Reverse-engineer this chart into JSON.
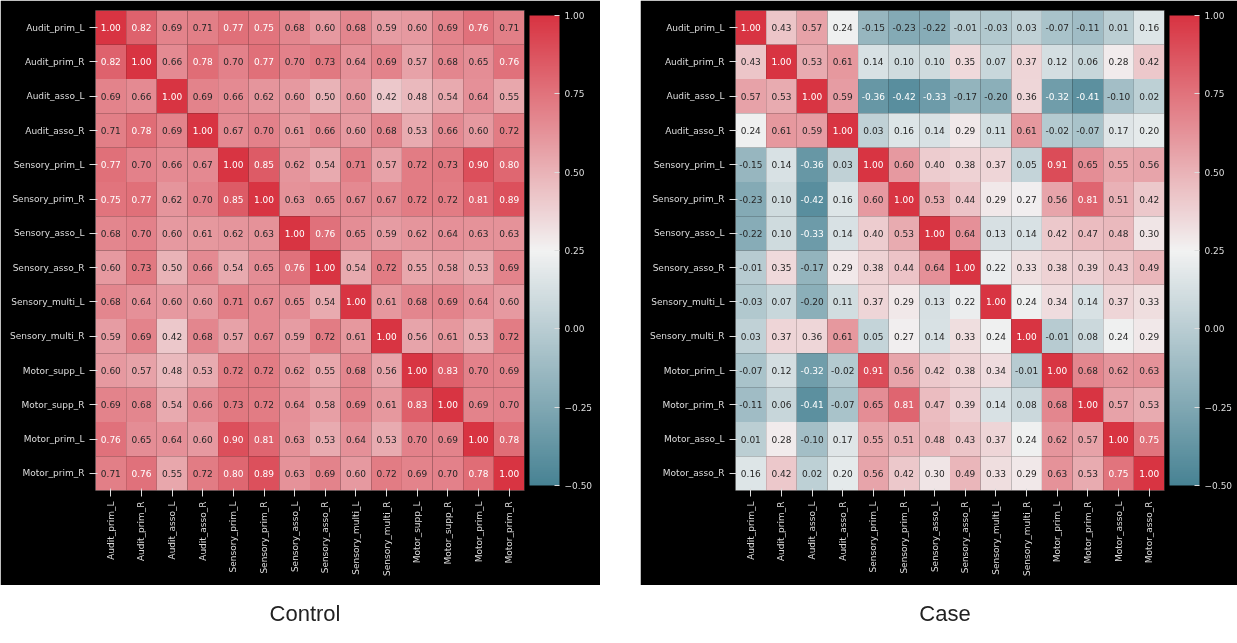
{
  "chart_data": [
    {
      "type": "heatmap",
      "title": "Control",
      "cell_labels": [
        [
          "1.00",
          "0.82",
          "0.69",
          "0.71",
          "0.77",
          "0.75",
          "0.68",
          "0.60",
          "0.68",
          "0.59",
          "0.60",
          "0.69",
          "0.76",
          "0.71"
        ],
        [
          "0.82",
          "1.00",
          "0.66",
          "0.78",
          "0.70",
          "0.77",
          "0.70",
          "0.73",
          "0.64",
          "0.69",
          "0.57",
          "0.68",
          "0.65",
          "0.76"
        ],
        [
          "0.69",
          "0.66",
          "1.00",
          "0.69",
          "0.66",
          "0.62",
          "0.60",
          "0.50",
          "0.60",
          "0.42",
          "0.48",
          "0.54",
          "0.64",
          "0.55"
        ],
        [
          "0.71",
          "0.78",
          "0.69",
          "1.00",
          "0.67",
          "0.70",
          "0.61",
          "0.66",
          "0.60",
          "0.68",
          "0.53",
          "0.66",
          "0.60",
          "0.72"
        ],
        [
          "0.77",
          "0.70",
          "0.66",
          "0.67",
          "1.00",
          "0.85",
          "0.62",
          "0.54",
          "0.71",
          "0.57",
          "0.72",
          "0.73",
          "0.90",
          "0.80"
        ],
        [
          "0.75",
          "0.77",
          "0.62",
          "0.70",
          "0.85",
          "1.00",
          "0.63",
          "0.65",
          "0.67",
          "0.67",
          "0.72",
          "0.72",
          "0.81",
          "0.89"
        ],
        [
          "0.68",
          "0.70",
          "0.60",
          "0.61",
          "0.62",
          "0.63",
          "1.00",
          "0.76",
          "0.65",
          "0.59",
          "0.62",
          "0.64",
          "0.63",
          "0.63"
        ],
        [
          "0.60",
          "0.73",
          "0.50",
          "0.66",
          "0.54",
          "0.65",
          "0.76",
          "1.00",
          "0.54",
          "0.72",
          "0.55",
          "0.58",
          "0.53",
          "0.69"
        ],
        [
          "0.68",
          "0.64",
          "0.60",
          "0.60",
          "0.71",
          "0.67",
          "0.65",
          "0.54",
          "1.00",
          "0.61",
          "0.68",
          "0.69",
          "0.64",
          "0.60"
        ],
        [
          "0.59",
          "0.69",
          "0.42",
          "0.68",
          "0.57",
          "0.67",
          "0.59",
          "0.72",
          "0.61",
          "1.00",
          "0.56",
          "0.61",
          "0.53",
          "0.72"
        ],
        [
          "0.60",
          "0.57",
          "0.48",
          "0.53",
          "0.72",
          "0.72",
          "0.62",
          "0.55",
          "0.68",
          "0.56",
          "1.00",
          "0.83",
          "0.70",
          "0.69"
        ],
        [
          "0.69",
          "0.68",
          "0.54",
          "0.66",
          "0.73",
          "0.72",
          "0.64",
          "0.58",
          "0.69",
          "0.61",
          "0.83",
          "1.00",
          "0.69",
          "0.70"
        ],
        [
          "0.76",
          "0.65",
          "0.64",
          "0.60",
          "0.90",
          "0.81",
          "0.63",
          "0.53",
          "0.64",
          "0.53",
          "0.70",
          "0.69",
          "1.00",
          "0.78"
        ],
        [
          "0.71",
          "0.76",
          "0.55",
          "0.72",
          "0.80",
          "0.89",
          "0.63",
          "0.69",
          "0.60",
          "0.72",
          "0.69",
          "0.70",
          "0.78",
          "1.00"
        ]
      ],
      "categories": [
        "Audit_prim_L",
        "Audit_prim_R",
        "Audit_asso_L",
        "Audit_asso_R",
        "Sensory_prim_L",
        "Sensory_prim_R",
        "Sensory_asso_L",
        "Sensory_asso_R",
        "Sensory_multi_L",
        "Sensory_multi_R",
        "Motor_supp_L",
        "Motor_supp_R",
        "Motor_prim_L",
        "Motor_prim_R"
      ],
      "y_categories": [
        "Audit_prim_L",
        "Audit_prim_R",
        "Audit_asso_L",
        "Audit_asso_R",
        "Sensory_prim_L",
        "Sensory_prim_R",
        "Sensory_asso_L",
        "Sensory_asso_R",
        "Sensory_multi_L",
        "Sensory_multi_R",
        "Motor_supp_L",
        "Motor_supp_R",
        "Motor_prim_L",
        "Motor_prim_R"
      ],
      "cells": [
        [
          1.0,
          0.82,
          0.69,
          0.71,
          0.77,
          0.75,
          0.68,
          0.6,
          0.68,
          0.59,
          0.6,
          0.69,
          0.76,
          0.71
        ],
        [
          0.82,
          1.0,
          0.66,
          0.78,
          0.7,
          0.77,
          0.7,
          0.73,
          0.64,
          0.69,
          0.57,
          0.68,
          0.65,
          0.76
        ],
        [
          0.69,
          0.66,
          1.0,
          0.69,
          0.66,
          0.62,
          0.6,
          0.5,
          0.6,
          0.42,
          0.48,
          0.54,
          0.64,
          0.55
        ],
        [
          0.71,
          0.78,
          0.69,
          1.0,
          0.67,
          0.7,
          0.61,
          0.66,
          0.6,
          0.68,
          0.53,
          0.66,
          0.6,
          0.72
        ],
        [
          0.77,
          0.7,
          0.66,
          0.67,
          1.0,
          0.85,
          0.62,
          0.54,
          0.71,
          0.57,
          0.72,
          0.73,
          0.9,
          0.8
        ],
        [
          0.75,
          0.77,
          0.62,
          0.7,
          0.85,
          1.0,
          0.63,
          0.65,
          0.67,
          0.67,
          0.72,
          0.72,
          0.81,
          0.89
        ],
        [
          0.68,
          0.7,
          0.6,
          0.61,
          0.62,
          0.63,
          1.0,
          0.76,
          0.65,
          0.59,
          0.62,
          0.64,
          0.63,
          0.63
        ],
        [
          0.6,
          0.73,
          0.5,
          0.66,
          0.54,
          0.65,
          0.76,
          1.0,
          0.54,
          0.72,
          0.55,
          0.58,
          0.53,
          0.69
        ],
        [
          0.68,
          0.64,
          0.6,
          0.6,
          0.71,
          0.67,
          0.65,
          0.54,
          1.0,
          0.61,
          0.68,
          0.69,
          0.64,
          0.6
        ],
        [
          0.59,
          0.69,
          0.42,
          0.68,
          0.57,
          0.67,
          0.59,
          0.72,
          0.61,
          1.0,
          0.56,
          0.61,
          0.53,
          0.72
        ],
        [
          0.6,
          0.57,
          0.48,
          0.53,
          0.72,
          0.72,
          0.62,
          0.55,
          0.68,
          0.56,
          1.0,
          0.83,
          0.7,
          0.69
        ],
        [
          0.69,
          0.68,
          0.54,
          0.66,
          0.73,
          0.72,
          0.64,
          0.58,
          0.69,
          0.61,
          0.83,
          1.0,
          0.69,
          0.7
        ],
        [
          0.76,
          0.65,
          0.64,
          0.6,
          0.9,
          0.81,
          0.63,
          0.53,
          0.64,
          0.53,
          0.7,
          0.69,
          1.0,
          0.78
        ],
        [
          0.71,
          0.76,
          0.55,
          0.72,
          0.8,
          0.89,
          0.63,
          0.69,
          0.6,
          0.72,
          0.69,
          0.7,
          0.78,
          1.0
        ]
      ],
      "clim": [
        -0.5,
        1.0
      ],
      "cticks": [
        {
          "value": -0.5,
          "label": "−0.50"
        },
        {
          "value": -0.25,
          "label": "−0.25"
        },
        {
          "value": 0,
          "label": "0.00"
        },
        {
          "value": 0.25,
          "label": "0.25"
        },
        {
          "value": 0.5,
          "label": "0.50"
        },
        {
          "value": 0.75,
          "label": "0.75"
        },
        {
          "value": 1.0,
          "label": "1.00"
        }
      ]
    },
    {
      "type": "heatmap",
      "title": "Case",
      "cell_labels": [
        [
          "1.00",
          "0.43",
          "0.57",
          "0.24",
          "-0.15",
          "-0.23",
          "-0.22",
          "-0.01",
          "-0.03",
          "0.03",
          "-0.07",
          "-0.11",
          "0.01",
          "0.16"
        ],
        [
          "0.43",
          "1.00",
          "0.53",
          "0.61",
          "0.14",
          "0.10",
          "0.10",
          "0.35",
          "0.07",
          "0.37",
          "0.12",
          "0.06",
          "0.28",
          "0.42"
        ],
        [
          "0.57",
          "0.53",
          "1.00",
          "0.59",
          "-0.36",
          "-0.42",
          "-0.33",
          "-0.17",
          "-0.20",
          "0.36",
          "-0.32",
          "-0.41",
          "-0.10",
          "0.02"
        ],
        [
          "0.24",
          "0.61",
          "0.59",
          "1.00",
          "0.03",
          "0.16",
          "0.14",
          "0.29",
          "0.11",
          "0.61",
          "-0.02",
          "-0.07",
          "0.17",
          "0.20"
        ],
        [
          "-0.15",
          "0.14",
          "-0.36",
          "0.03",
          "1.00",
          "0.60",
          "0.40",
          "0.38",
          "0.37",
          "0.05",
          "0.91",
          "0.65",
          "0.55",
          "0.56"
        ],
        [
          "-0.23",
          "0.10",
          "-0.42",
          "0.16",
          "0.60",
          "1.00",
          "0.53",
          "0.44",
          "0.29",
          "0.27",
          "0.56",
          "0.81",
          "0.51",
          "0.42"
        ],
        [
          "-0.22",
          "0.10",
          "-0.33",
          "0.14",
          "0.40",
          "0.53",
          "1.00",
          "0.64",
          "0.13",
          "0.14",
          "0.42",
          "0.47",
          "0.48",
          "0.30"
        ],
        [
          "-0.01",
          "0.35",
          "-0.17",
          "0.29",
          "0.38",
          "0.44",
          "0.64",
          "1.00",
          "0.22",
          "0.33",
          "0.38",
          "0.39",
          "0.43",
          "0.49"
        ],
        [
          "-0.03",
          "0.07",
          "-0.20",
          "0.11",
          "0.37",
          "0.29",
          "0.13",
          "0.22",
          "1.00",
          "0.24",
          "0.34",
          "0.14",
          "0.37",
          "0.33"
        ],
        [
          "0.03",
          "0.37",
          "0.36",
          "0.61",
          "0.05",
          "0.27",
          "0.14",
          "0.33",
          "0.24",
          "1.00",
          "-0.01",
          "0.08",
          "0.24",
          "0.29"
        ],
        [
          "-0.07",
          "0.12",
          "-0.32",
          "-0.02",
          "0.91",
          "0.56",
          "0.42",
          "0.38",
          "0.34",
          "-0.01",
          "1.00",
          "0.68",
          "0.62",
          "0.63"
        ],
        [
          "-0.11",
          "0.06",
          "-0.41",
          "-0.07",
          "0.65",
          "0.81",
          "0.47",
          "0.39",
          "0.14",
          "0.08",
          "0.68",
          "1.00",
          "0.57",
          "0.53"
        ],
        [
          "0.01",
          "0.28",
          "-0.10",
          "0.17",
          "0.55",
          "0.51",
          "0.48",
          "0.43",
          "0.37",
          "0.24",
          "0.62",
          "0.57",
          "1.00",
          "0.75"
        ],
        [
          "0.16",
          "0.42",
          "0.02",
          "0.20",
          "0.56",
          "0.42",
          "0.30",
          "0.49",
          "0.33",
          "0.29",
          "0.63",
          "0.53",
          "0.75",
          "1.00"
        ]
      ],
      "categories": [
        "Audit_prim_L",
        "Audit_prim_R",
        "Audit_asso_L",
        "Audit_asso_R",
        "Sensory_prim_L",
        "Sensory_prim_R",
        "Sensory_asso_L",
        "Sensory_asso_R",
        "Sensory_multi_L",
        "Sensory_multi_R",
        "Motor_prim_L",
        "Motor_prim_R",
        "Motor_asso_L",
        "Motor_asso_R"
      ],
      "y_categories": [
        "Audit_prim_L",
        "Audit_prim_R",
        "Audit_asso_L",
        "Audit_asso_R",
        "Sensory_prim_L",
        "Sensory_prim_R",
        "Sensory_asso_L",
        "Sensory_asso_R",
        "Sensory_multi_L",
        "Sensory_multi_R",
        "Motor_prim_L",
        "Motor_prim_R",
        "Motor_asso_L",
        "Motor_asso_R"
      ],
      "cells": [
        [
          1.0,
          0.43,
          0.57,
          0.24,
          -0.15,
          -0.23,
          -0.22,
          -0.01,
          -0.03,
          0.03,
          -0.07,
          -0.11,
          0.01,
          0.16
        ],
        [
          0.43,
          1.0,
          0.53,
          0.61,
          0.14,
          0.1,
          0.1,
          0.35,
          0.07,
          0.37,
          0.12,
          0.06,
          0.28,
          0.42
        ],
        [
          0.57,
          0.53,
          1.0,
          0.59,
          -0.36,
          -0.42,
          -0.33,
          -0.17,
          -0.2,
          0.36,
          -0.32,
          -0.41,
          -0.1,
          0.02
        ],
        [
          0.24,
          0.61,
          0.59,
          1.0,
          0.03,
          0.16,
          0.14,
          0.29,
          0.11,
          0.61,
          -0.02,
          -0.07,
          0.17,
          0.2
        ],
        [
          -0.15,
          0.14,
          -0.36,
          0.03,
          1.0,
          0.6,
          0.4,
          0.38,
          0.37,
          0.05,
          0.91,
          0.65,
          0.55,
          0.56
        ],
        [
          -0.23,
          0.1,
          -0.42,
          0.16,
          0.6,
          1.0,
          0.53,
          0.44,
          0.29,
          0.27,
          0.56,
          0.81,
          0.51,
          0.42
        ],
        [
          -0.22,
          0.1,
          -0.33,
          0.14,
          0.4,
          0.53,
          1.0,
          0.64,
          0.13,
          0.14,
          0.42,
          0.47,
          0.48,
          0.3
        ],
        [
          -0.01,
          0.35,
          -0.17,
          0.29,
          0.38,
          0.44,
          0.64,
          1.0,
          0.22,
          0.33,
          0.38,
          0.39,
          0.43,
          0.49
        ],
        [
          -0.03,
          0.07,
          -0.2,
          0.11,
          0.37,
          0.29,
          0.13,
          0.22,
          1.0,
          0.24,
          0.34,
          0.14,
          0.37,
          0.33
        ],
        [
          0.03,
          0.37,
          0.36,
          0.61,
          0.05,
          0.27,
          0.14,
          0.33,
          0.24,
          1.0,
          -0.01,
          0.08,
          0.24,
          0.29
        ],
        [
          -0.07,
          0.12,
          -0.32,
          -0.02,
          0.91,
          0.56,
          0.42,
          0.38,
          0.34,
          -0.01,
          1.0,
          0.68,
          0.62,
          0.63
        ],
        [
          -0.11,
          0.06,
          -0.41,
          -0.07,
          0.65,
          0.81,
          0.47,
          0.39,
          0.14,
          0.08,
          0.68,
          1.0,
          0.57,
          0.53
        ],
        [
          0.01,
          0.28,
          -0.1,
          0.17,
          0.55,
          0.51,
          0.48,
          0.43,
          0.37,
          0.24,
          0.62,
          0.57,
          1.0,
          0.75
        ],
        [
          0.16,
          0.42,
          0.02,
          0.2,
          0.56,
          0.42,
          0.3,
          0.49,
          0.33,
          0.29,
          0.63,
          0.53,
          0.75,
          1.0
        ]
      ],
      "clim": [
        -0.5,
        1.0
      ],
      "cticks": [
        {
          "value": -0.5,
          "label": "−0.50"
        },
        {
          "value": -0.25,
          "label": "−0.25"
        },
        {
          "value": 0,
          "label": "0.00"
        },
        {
          "value": 0.25,
          "label": "0.25"
        },
        {
          "value": 0.5,
          "label": "0.50"
        },
        {
          "value": 0.75,
          "label": "0.75"
        },
        {
          "value": 1.0,
          "label": "1.00"
        }
      ]
    }
  ]
}
